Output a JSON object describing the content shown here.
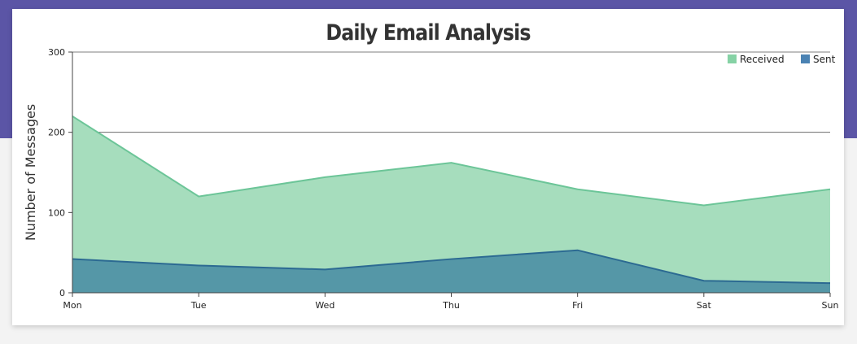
{
  "chart_data": {
    "type": "area",
    "title": "Daily Email Analysis",
    "ylabel": "Number of Messages",
    "xlabel": "",
    "categories": [
      "Mon",
      "Tue",
      "Wed",
      "Thu",
      "Fri",
      "Sat",
      "Sun"
    ],
    "ylim": [
      0,
      300
    ],
    "yticks": [
      0,
      100,
      200,
      300
    ],
    "grid": true,
    "legend": "top-right",
    "series": [
      {
        "name": "Received",
        "values": [
          220,
          120,
          144,
          162,
          129,
          109,
          129
        ],
        "color": "#6cc598",
        "fill": "#a6ddbd"
      },
      {
        "name": "Sent",
        "values": [
          42,
          34,
          29,
          42,
          53,
          15,
          12
        ],
        "color": "#2c6a92",
        "fill": "#5597a7"
      }
    ]
  }
}
